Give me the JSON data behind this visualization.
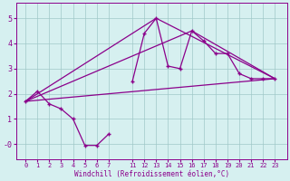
{
  "xlabel": "Windchill (Refroidissement éolien,°C)",
  "background_color": "#d6f0f0",
  "line_color": "#8b008b",
  "ylim": [
    -0.6,
    5.6
  ],
  "yticks": [
    "-0",
    "1",
    "2",
    "3",
    "4",
    "5"
  ],
  "ytick_vals": [
    -0.0,
    1,
    2,
    3,
    4,
    5
  ],
  "xtick_labels": [
    "0",
    "1",
    "2",
    "3",
    "4",
    "5",
    "6",
    "7",
    "11",
    "12",
    "13",
    "14",
    "15",
    "16",
    "17",
    "18",
    "19",
    "20",
    "21",
    "22",
    "23"
  ],
  "xtick_hours": [
    0,
    1,
    2,
    3,
    4,
    5,
    6,
    7,
    11,
    12,
    13,
    14,
    15,
    16,
    17,
    18,
    19,
    20,
    21,
    22,
    23
  ],
  "series1_hours": [
    0,
    1,
    2,
    3,
    4,
    5,
    6,
    7,
    11,
    12,
    13,
    14,
    15,
    16,
    17,
    18,
    19,
    20,
    21,
    22,
    23
  ],
  "series1_y": [
    1.7,
    2.1,
    1.6,
    1.4,
    1.0,
    -0.05,
    -0.05,
    0.4,
    2.5,
    4.4,
    5.0,
    3.1,
    3.0,
    4.5,
    4.1,
    3.6,
    3.6,
    2.8,
    2.6,
    2.6,
    2.6
  ],
  "series2_hours": [
    0,
    23
  ],
  "series2_y": [
    1.7,
    2.6
  ],
  "series3_hours": [
    0,
    16,
    23
  ],
  "series3_y": [
    1.7,
    4.5,
    2.6
  ],
  "series4_hours": [
    0,
    13,
    23
  ],
  "series4_y": [
    1.7,
    5.0,
    2.6
  ]
}
